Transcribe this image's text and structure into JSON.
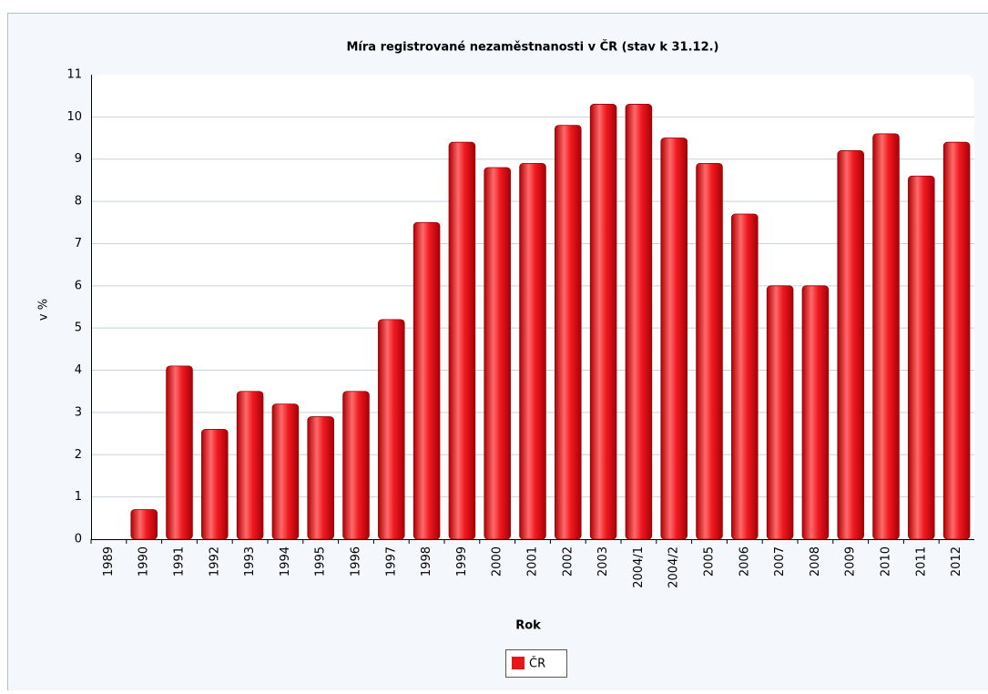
{
  "chart_data": {
    "type": "bar",
    "title": "Míra registrované nezaměstnanosti v ČR (stav k 31.12.)",
    "x_label": "Rok",
    "y_label": "v %",
    "categories": [
      "1989",
      "1990",
      "1991",
      "1992",
      "1993",
      "1994",
      "1995",
      "1996",
      "1997",
      "1998",
      "1999",
      "2000",
      "2001",
      "2002",
      "2003",
      "2004/1",
      "2004/2",
      "2005",
      "2006",
      "2007",
      "2008",
      "2009",
      "2010",
      "2011",
      "2012"
    ],
    "series": [
      {
        "name": "ČR",
        "color": "#e8151b",
        "values": [
          0,
          0.7,
          4.1,
          2.6,
          3.5,
          3.2,
          2.9,
          3.5,
          5.2,
          7.5,
          9.4,
          8.8,
          8.9,
          9.8,
          10.3,
          10.3,
          9.5,
          8.9,
          7.7,
          6.0,
          6.0,
          9.2,
          9.6,
          8.6,
          9.4
        ]
      }
    ],
    "ylim": [
      0,
      11
    ],
    "yticks": [
      0,
      1,
      2,
      3,
      4,
      5,
      6,
      7,
      8,
      9,
      10,
      11
    ],
    "grid": true,
    "legend": "bottom"
  }
}
